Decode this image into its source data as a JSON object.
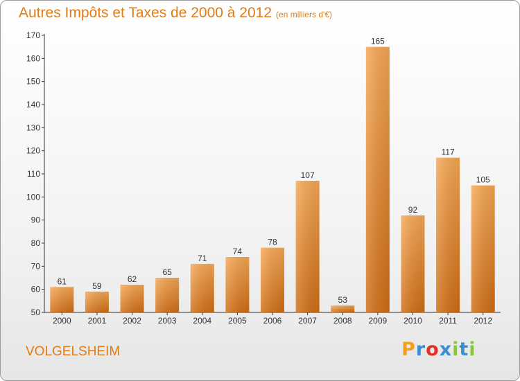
{
  "header": {
    "title": "Autres Impôts et Taxes de 2000 à 2012",
    "unit": "(en milliers d'€)"
  },
  "footer": {
    "city": "VOLGELSHEIM",
    "logo_letters": [
      "P",
      "r",
      "o",
      "x",
      "i",
      "t",
      "i"
    ],
    "logo_colors": [
      "#f0a020",
      "#3a8fd0",
      "#e0302a",
      "#3a8fd0",
      "#8cc63e",
      "#3a8fd0",
      "#8cc63e"
    ]
  },
  "chart_data": {
    "type": "bar",
    "title": "Autres Impôts et Taxes de 2000 à 2012",
    "categories": [
      "2000",
      "2001",
      "2002",
      "2003",
      "2004",
      "2005",
      "2006",
      "2007",
      "2008",
      "2009",
      "2010",
      "2011",
      "2012"
    ],
    "values": [
      61,
      59,
      62,
      65,
      71,
      74,
      78,
      107,
      53,
      165,
      92,
      117,
      105
    ],
    "ylim": [
      50,
      170
    ],
    "yticks": [
      50,
      60,
      70,
      80,
      90,
      100,
      110,
      120,
      130,
      140,
      150,
      160,
      170
    ],
    "grid": false,
    "bar_color_top": "#f7a855",
    "bar_color_bottom": "#d06e14"
  }
}
